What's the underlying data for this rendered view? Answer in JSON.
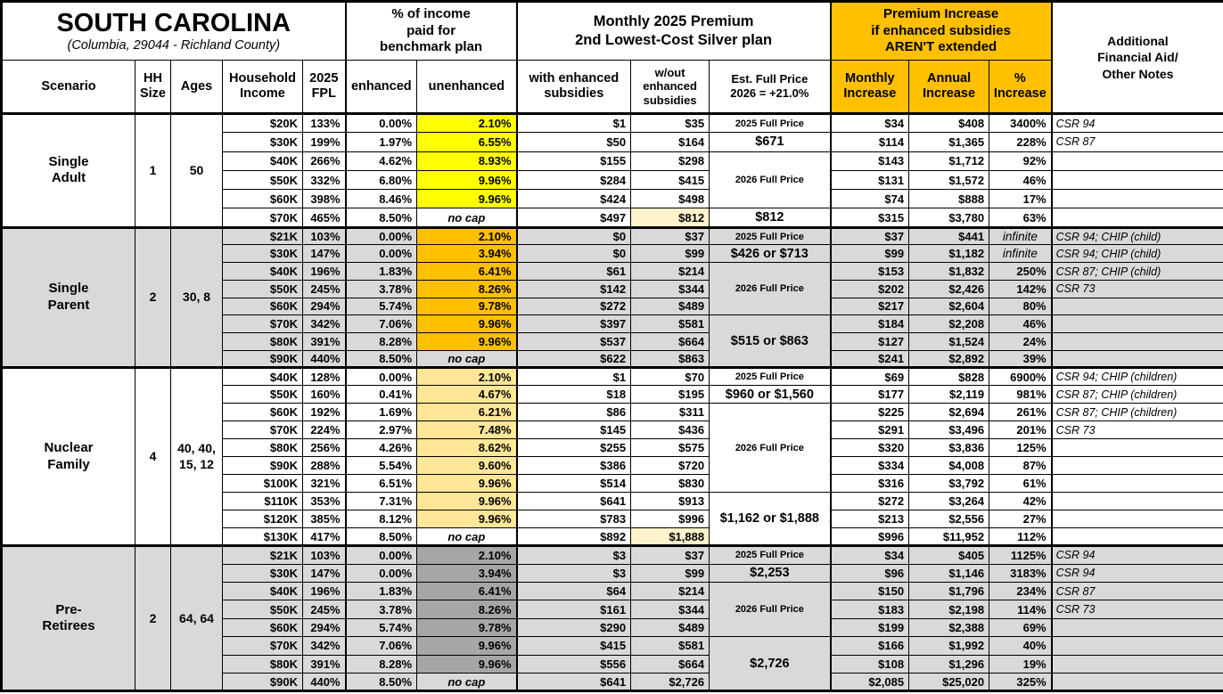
{
  "colors": {
    "accent_orange": "#FFC000",
    "single_adult_unenhanced": "#FFFF00",
    "single_parent_unenhanced": "#FFC000",
    "nuclear_family_unenhanced": "#FFE699",
    "pre_retirees_unenhanced": "#A6A6A6",
    "section_gray": "#D9D9D9",
    "highlight_cream": "#FFF2CC"
  },
  "header": {
    "title": "SOUTH CAROLINA",
    "subtitle": "(Columbia, 29044 - Richland County)",
    "group_income": "% of income\npaid for\nbenchmark plan",
    "group_premium": "Monthly 2025 Premium\n2nd Lowest-Cost Silver plan",
    "group_increase": "Premium Increase\nif enhanced subsidies\nAREN'T extended",
    "group_notes": "Additional\nFinancial Aid/\nOther Notes",
    "cols": {
      "scenario": "Scenario",
      "hh": "HH\nSize",
      "ages": "Ages",
      "income": "Household\nIncome",
      "fpl": "2025\nFPL",
      "enhanced": "enhanced",
      "unenhanced": "unenhanced",
      "with_sub": "with enhanced\nsubsidies",
      "without_sub": "w/out\nenhanced\nsubsidies",
      "est": "Est. Full Price\n2026 = +21.0%",
      "monthly": "Monthly\nIncrease",
      "annual": "Annual\nIncrease",
      "pct": "%\nIncrease"
    }
  },
  "row_fields": [
    "household_income",
    "fpl_2025",
    "enhanced_pct",
    "unenhanced_pct",
    "premium_with_enhanced_subsidies",
    "premium_without_enhanced_subsidies",
    "monthly_increase",
    "annual_increase",
    "pct_increase",
    "notes"
  ],
  "sections": [
    {
      "scenario": "Single\nAdult",
      "hh_size": "1",
      "ages": "50",
      "bg": "#FFFFFF",
      "unenhanced_color": "#FFFF00",
      "rows": [
        [
          "$20K",
          "133%",
          "0.00%",
          "2.10%",
          "$1",
          "$35",
          "$34",
          "$408",
          "3400%",
          "CSR 94"
        ],
        [
          "$30K",
          "199%",
          "1.97%",
          "6.55%",
          "$50",
          "$164",
          "$114",
          "$1,365",
          "228%",
          "CSR 87"
        ],
        [
          "$40K",
          "266%",
          "4.62%",
          "8.93%",
          "$155",
          "$298",
          "$143",
          "$1,712",
          "92%",
          ""
        ],
        [
          "$50K",
          "332%",
          "6.80%",
          "9.96%",
          "$284",
          "$415",
          "$131",
          "$1,572",
          "46%",
          ""
        ],
        [
          "$60K",
          "398%",
          "8.46%",
          "9.96%",
          "$424",
          "$498",
          "$74",
          "$888",
          "17%",
          ""
        ],
        [
          "$70K",
          "465%",
          "8.50%",
          "no cap",
          "$497",
          "$812",
          "$315",
          "$3,780",
          "63%",
          ""
        ]
      ],
      "full_price": [
        {
          "span": 1,
          "text": "2025 Full Price",
          "small": true
        },
        {
          "span": 1,
          "text": "$671"
        },
        {
          "span": 3,
          "text": "2026 Full Price",
          "small": true
        },
        {
          "span": 1,
          "text": "$812"
        }
      ]
    },
    {
      "scenario": "Single\nParent",
      "hh_size": "2",
      "ages": "30, 8",
      "bg": "#D9D9D9",
      "unenhanced_color": "#FFC000",
      "rows": [
        [
          "$21K",
          "103%",
          "0.00%",
          "2.10%",
          "$0",
          "$37",
          "$37",
          "$441",
          "infinite",
          "CSR 94; CHIP (child)"
        ],
        [
          "$30K",
          "147%",
          "0.00%",
          "3.94%",
          "$0",
          "$99",
          "$99",
          "$1,182",
          "infinite",
          "CSR 94; CHIP (child)"
        ],
        [
          "$40K",
          "196%",
          "1.83%",
          "6.41%",
          "$61",
          "$214",
          "$153",
          "$1,832",
          "250%",
          "CSR 87; CHIP (child)"
        ],
        [
          "$50K",
          "245%",
          "3.78%",
          "8.26%",
          "$142",
          "$344",
          "$202",
          "$2,426",
          "142%",
          "CSR 73"
        ],
        [
          "$60K",
          "294%",
          "5.74%",
          "9.78%",
          "$272",
          "$489",
          "$217",
          "$2,604",
          "80%",
          ""
        ],
        [
          "$70K",
          "342%",
          "7.06%",
          "9.96%",
          "$397",
          "$581",
          "$184",
          "$2,208",
          "46%",
          ""
        ],
        [
          "$80K",
          "391%",
          "8.28%",
          "9.96%",
          "$537",
          "$664",
          "$127",
          "$1,524",
          "24%",
          ""
        ],
        [
          "$90K",
          "440%",
          "8.50%",
          "no cap",
          "$622",
          "$863",
          "$241",
          "$2,892",
          "39%",
          ""
        ]
      ],
      "full_price": [
        {
          "span": 1,
          "text": "2025 Full Price",
          "small": true
        },
        {
          "span": 1,
          "text": "$426 or $713"
        },
        {
          "span": 3,
          "text": "2026 Full Price",
          "small": true
        },
        {
          "span": 3,
          "text": "$515 or $863"
        }
      ]
    },
    {
      "scenario": "Nuclear\nFamily",
      "hh_size": "4",
      "ages": "40, 40,\n15, 12",
      "bg": "#FFFFFF",
      "unenhanced_color": "#FFE699",
      "rows": [
        [
          "$40K",
          "128%",
          "0.00%",
          "2.10%",
          "$1",
          "$70",
          "$69",
          "$828",
          "6900%",
          "CSR 94; CHIP (children)"
        ],
        [
          "$50K",
          "160%",
          "0.41%",
          "4.67%",
          "$18",
          "$195",
          "$177",
          "$2,119",
          "981%",
          "CSR 87; CHIP (children)"
        ],
        [
          "$60K",
          "192%",
          "1.69%",
          "6.21%",
          "$86",
          "$311",
          "$225",
          "$2,694",
          "261%",
          "CSR 87; CHIP (children)"
        ],
        [
          "$70K",
          "224%",
          "2.97%",
          "7.48%",
          "$145",
          "$436",
          "$291",
          "$3,496",
          "201%",
          "CSR 73"
        ],
        [
          "$80K",
          "256%",
          "4.26%",
          "8.62%",
          "$255",
          "$575",
          "$320",
          "$3,836",
          "125%",
          ""
        ],
        [
          "$90K",
          "288%",
          "5.54%",
          "9.60%",
          "$386",
          "$720",
          "$334",
          "$4,008",
          "87%",
          ""
        ],
        [
          "$100K",
          "321%",
          "6.51%",
          "9.96%",
          "$514",
          "$830",
          "$316",
          "$3,792",
          "61%",
          ""
        ],
        [
          "$110K",
          "353%",
          "7.31%",
          "9.96%",
          "$641",
          "$913",
          "$272",
          "$3,264",
          "42%",
          ""
        ],
        [
          "$120K",
          "385%",
          "8.12%",
          "9.96%",
          "$783",
          "$996",
          "$213",
          "$2,556",
          "27%",
          ""
        ],
        [
          "$130K",
          "417%",
          "8.50%",
          "no cap",
          "$892",
          "$1,888",
          "$996",
          "$11,952",
          "112%",
          ""
        ]
      ],
      "full_price": [
        {
          "span": 1,
          "text": "2025 Full Price",
          "small": true
        },
        {
          "span": 1,
          "text": "$960 or $1,560"
        },
        {
          "span": 5,
          "text": "2026 Full Price",
          "small": true
        },
        {
          "span": 3,
          "text": "$1,162 or $1,888"
        }
      ]
    },
    {
      "scenario": "Pre-\nRetirees",
      "hh_size": "2",
      "ages": "64, 64",
      "bg": "#D9D9D9",
      "unenhanced_color": "#A6A6A6",
      "rows": [
        [
          "$21K",
          "103%",
          "0.00%",
          "2.10%",
          "$3",
          "$37",
          "$34",
          "$405",
          "1125%",
          "CSR 94"
        ],
        [
          "$30K",
          "147%",
          "0.00%",
          "3.94%",
          "$3",
          "$99",
          "$96",
          "$1,146",
          "3183%",
          "CSR 94"
        ],
        [
          "$40K",
          "196%",
          "1.83%",
          "6.41%",
          "$64",
          "$214",
          "$150",
          "$1,796",
          "234%",
          "CSR 87"
        ],
        [
          "$50K",
          "245%",
          "3.78%",
          "8.26%",
          "$161",
          "$344",
          "$183",
          "$2,198",
          "114%",
          "CSR 73"
        ],
        [
          "$60K",
          "294%",
          "5.74%",
          "9.78%",
          "$290",
          "$489",
          "$199",
          "$2,388",
          "69%",
          ""
        ],
        [
          "$70K",
          "342%",
          "7.06%",
          "9.96%",
          "$415",
          "$581",
          "$166",
          "$1,992",
          "40%",
          ""
        ],
        [
          "$80K",
          "391%",
          "8.28%",
          "9.96%",
          "$556",
          "$664",
          "$108",
          "$1,296",
          "19%",
          ""
        ],
        [
          "$90K",
          "440%",
          "8.50%",
          "no cap",
          "$641",
          "$2,726",
          "$2,085",
          "$25,020",
          "325%",
          ""
        ]
      ],
      "full_price": [
        {
          "span": 1,
          "text": "2025 Full Price",
          "small": true
        },
        {
          "span": 1,
          "text": "$2,253"
        },
        {
          "span": 3,
          "text": "2026 Full Price",
          "small": true
        },
        {
          "span": 3,
          "text": "$2,726"
        }
      ]
    }
  ]
}
